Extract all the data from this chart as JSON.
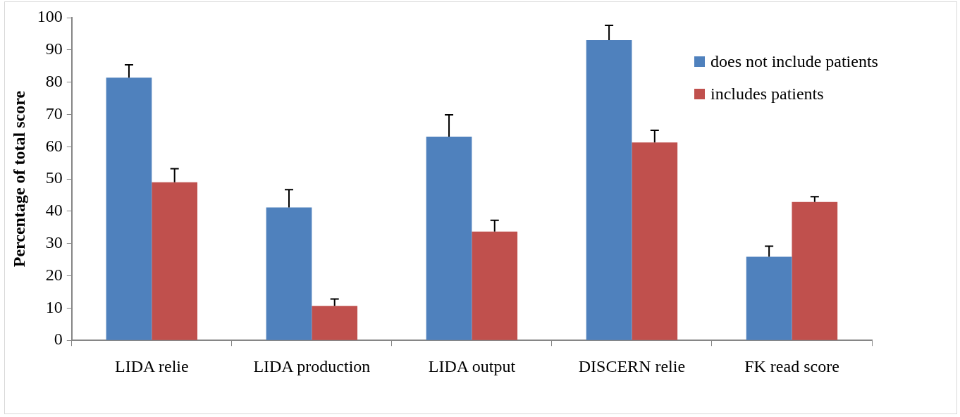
{
  "chart_data": {
    "type": "bar",
    "ylabel": "Percentage of total score",
    "categories": [
      "LIDA relie",
      "LIDA production",
      "LIDA output",
      "DISCERN relie",
      "FK read score"
    ],
    "series": [
      {
        "name": "does not include patients",
        "color": "#4f81bd",
        "values": [
          81.4,
          41.2,
          63.1,
          93.0,
          25.9
        ],
        "errors": [
          [
            81.4,
            85.4
          ],
          [
            41.2,
            46.7
          ],
          [
            63.1,
            69.9
          ],
          [
            93.0,
            97.6
          ],
          [
            25.9,
            29.2
          ]
        ]
      },
      {
        "name": "includes patients",
        "color": "#c0504d",
        "values": [
          49.0,
          10.7,
          33.7,
          61.3,
          42.9
        ],
        "errors": [
          [
            49.0,
            53.2
          ],
          [
            10.7,
            12.8
          ],
          [
            33.7,
            37.2
          ],
          [
            61.3,
            65.1
          ],
          [
            42.9,
            44.5
          ]
        ]
      }
    ],
    "ylim": [
      0,
      100
    ],
    "yticks": [
      0,
      10,
      20,
      30,
      40,
      50,
      60,
      70,
      80,
      90,
      100
    ],
    "grid": false,
    "legend": "top right"
  }
}
